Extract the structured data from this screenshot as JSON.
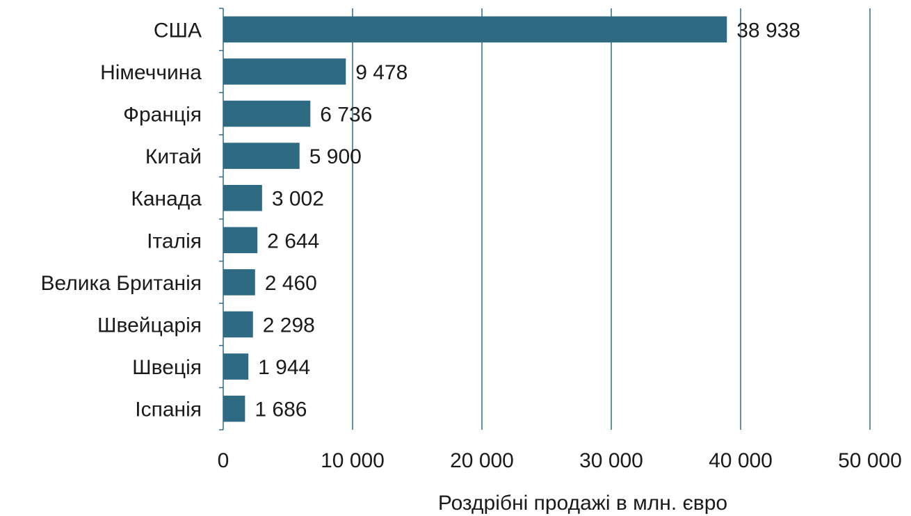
{
  "chart_data": {
    "type": "bar",
    "orientation": "horizontal",
    "categories": [
      "США",
      "Німеччина",
      "Франція",
      "Китай",
      "Канада",
      "Італія",
      "Велика Британія",
      "Швейцарія",
      "Швеція",
      "Іспанія"
    ],
    "values": [
      38938,
      9478,
      6736,
      5900,
      3002,
      2644,
      2460,
      2298,
      1944,
      1686
    ],
    "value_labels": [
      "38 938",
      "9 478",
      "6 736",
      "5 900",
      "3 002",
      "2 644",
      "2 460",
      "2 298",
      "1 944",
      "1 686"
    ],
    "xlabel": "Роздрібні продажі в млн. євро",
    "ylabel": "",
    "xlim": [
      0,
      50000
    ],
    "x_ticks": [
      0,
      10000,
      20000,
      30000,
      40000,
      50000
    ],
    "x_tick_labels": [
      "0",
      "10 000",
      "20 000",
      "30 000",
      "40 000",
      "50 000"
    ],
    "grid": "vertical",
    "legend": "none",
    "colors": {
      "bar": "#2e6a82",
      "grid": "#2e6a82",
      "text": "#1a1a1a"
    }
  }
}
